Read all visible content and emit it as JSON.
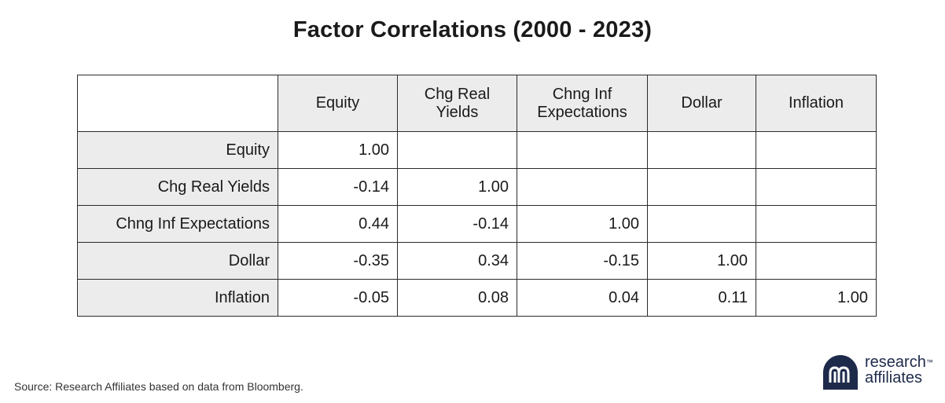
{
  "chart_data": {
    "type": "table",
    "title": "Factor Correlations (2000 - 2023)",
    "columns": [
      "Equity",
      "Chg Real\nYields",
      "Chng Inf\nExpectations",
      "Dollar",
      "Inflation"
    ],
    "rows": [
      {
        "label": "Equity",
        "values": [
          "1.00",
          "",
          "",
          "",
          ""
        ]
      },
      {
        "label": "Chg Real Yields",
        "values": [
          "-0.14",
          "1.00",
          "",
          "",
          ""
        ]
      },
      {
        "label": "Chng Inf Expectations",
        "values": [
          "0.44",
          "-0.14",
          "1.00",
          "",
          ""
        ]
      },
      {
        "label": "Dollar",
        "values": [
          "-0.35",
          "0.34",
          "-0.15",
          "1.00",
          ""
        ]
      },
      {
        "label": "Inflation",
        "values": [
          "-0.05",
          "0.08",
          "0.04",
          "0.11",
          "1.00"
        ]
      }
    ]
  },
  "footer": {
    "source": "Source: Research Affiliates based on data from Bloomberg."
  },
  "logo": {
    "line1": "research",
    "line2": "affiliates",
    "trademark": "™",
    "color": "#1e2a4a"
  }
}
